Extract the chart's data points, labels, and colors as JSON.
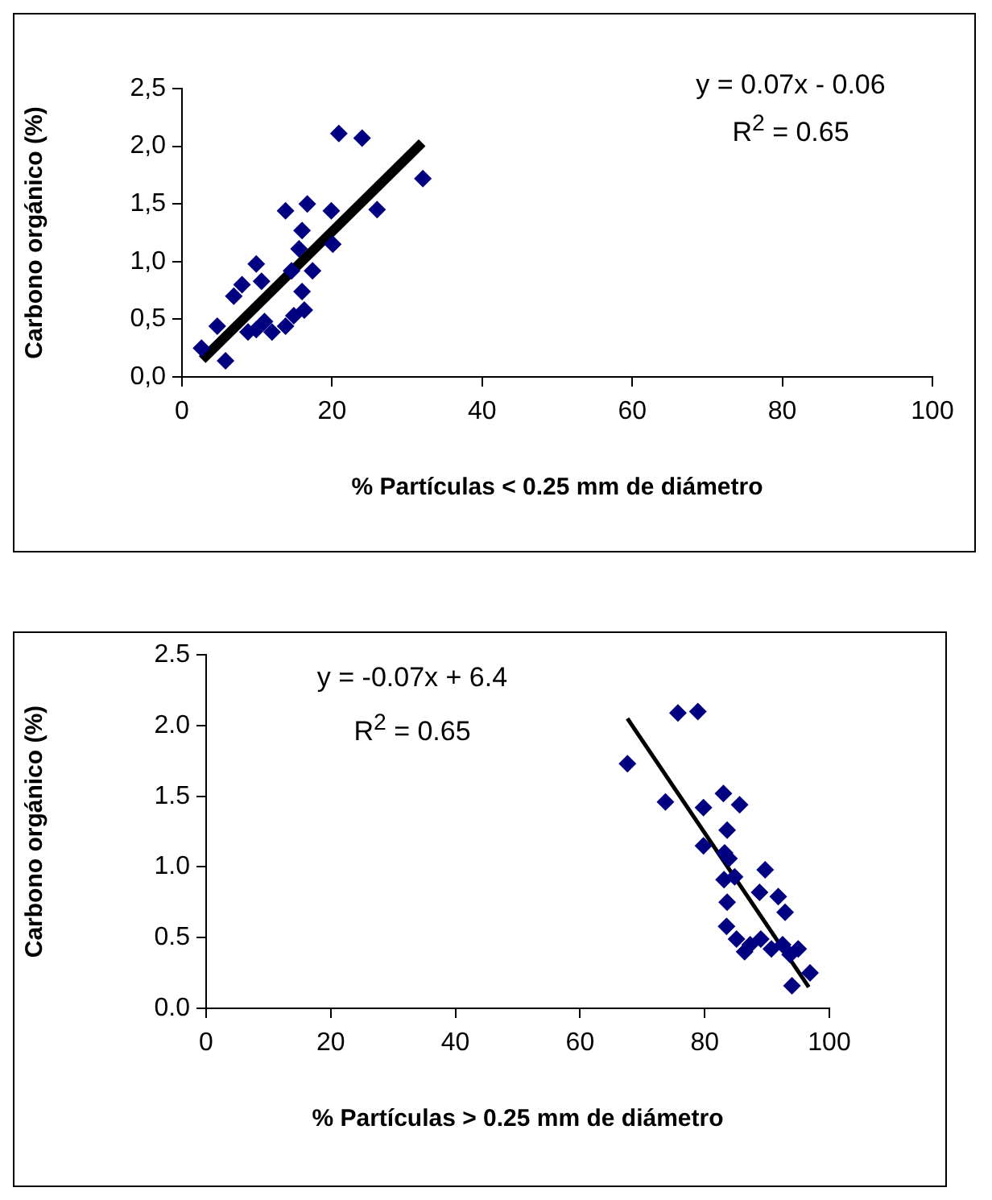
{
  "chart_data": [
    {
      "type": "scatter",
      "xlabel": "% Partículas < 0.25 mm de diámetro",
      "ylabel": "Carbono orgánico (%)",
      "annotations": [
        "y = 0.07x - 0.06",
        "R$^{2}$ = 0.65"
      ],
      "xlim": [
        0,
        100
      ],
      "xticks": [
        0,
        20,
        40,
        60,
        80,
        100
      ],
      "ylim": [
        0,
        2.5
      ],
      "yticks": [
        {
          "value": 0,
          "label": "0,0"
        },
        {
          "value": 0.5,
          "label": "0,5"
        },
        {
          "value": 1,
          "label": "1,0"
        },
        {
          "value": 1.5,
          "label": "1,5"
        },
        {
          "value": 2,
          "label": "2,0"
        },
        {
          "value": 2.5,
          "label": "2,5"
        }
      ],
      "grid": false,
      "legend": false,
      "marker": "diamond",
      "series": [
        {
          "color": "#000080",
          "x": [
            2.6,
            4.7,
            5.8,
            6.9,
            8.0,
            9.9,
            10.6,
            8.8,
            12.0,
            13.8,
            14.9,
            16.3,
            13.8,
            16.7,
            19.9,
            20.1,
            16.0,
            15.6,
            14.6,
            17.4,
            16.0,
            20.9,
            24.0,
            26.0,
            32.1,
            11.0,
            9.9
          ],
          "values": [
            0.25,
            0.44,
            0.14,
            0.7,
            0.8,
            0.98,
            0.83,
            0.39,
            0.39,
            0.44,
            0.53,
            0.58,
            1.44,
            1.5,
            1.44,
            1.15,
            1.27,
            1.11,
            0.92,
            0.92,
            0.74,
            2.11,
            2.07,
            1.45,
            1.72,
            0.48,
            0.41
          ]
        },
        {
          "type": "line",
          "color": "#000000",
          "marker": "none",
          "x": [
            2.7,
            32
          ],
          "values": [
            0.15,
            2.03
          ]
        }
      ]
    },
    {
      "type": "scatter",
      "xlabel": "% Partículas > 0.25 mm de diámetro",
      "ylabel": "Carbono orgánico (%)",
      "annotations": [
        "y = -0.07x + 6.4",
        "R$^{2}$ = 0.65"
      ],
      "xlim": [
        0,
        100
      ],
      "xticks": [
        0,
        20,
        40,
        60,
        80,
        100
      ],
      "ylim": [
        0,
        2.5
      ],
      "yticks": [
        {
          "value": 0,
          "label": "0.0"
        },
        {
          "value": 0.5,
          "label": "0.5"
        },
        {
          "value": 1,
          "label": "1.0"
        },
        {
          "value": 1.5,
          "label": "1.5"
        },
        {
          "value": 2,
          "label": "2.0"
        },
        {
          "value": 2.5,
          "label": "2.5"
        }
      ],
      "grid": false,
      "legend": false,
      "marker": "diamond",
      "series": [
        {
          "color": "#000080",
          "x": [
            75.7,
            78.9,
            67.6,
            73.7,
            79.8,
            83.0,
            85.6,
            83.6,
            79.8,
            83.2,
            83.9,
            89.7,
            83.1,
            84.8,
            88.8,
            91.8,
            92.9,
            83.6,
            83.5,
            85.1,
            87.3,
            89.0,
            90.7,
            92.5,
            95.0,
            93.7,
            86.4,
            96.9,
            94.0
          ],
          "values": [
            2.09,
            2.1,
            1.73,
            1.46,
            1.42,
            1.52,
            1.44,
            1.26,
            1.15,
            1.1,
            1.06,
            0.98,
            0.91,
            0.93,
            0.82,
            0.79,
            0.68,
            0.75,
            0.58,
            0.49,
            0.45,
            0.49,
            0.42,
            0.45,
            0.42,
            0.38,
            0.4,
            0.25,
            0.16
          ]
        },
        {
          "type": "line",
          "color": "#000000",
          "marker": "none",
          "x": [
            67.6,
            96.7
          ],
          "values": [
            2.05,
            0.15
          ]
        }
      ]
    }
  ]
}
